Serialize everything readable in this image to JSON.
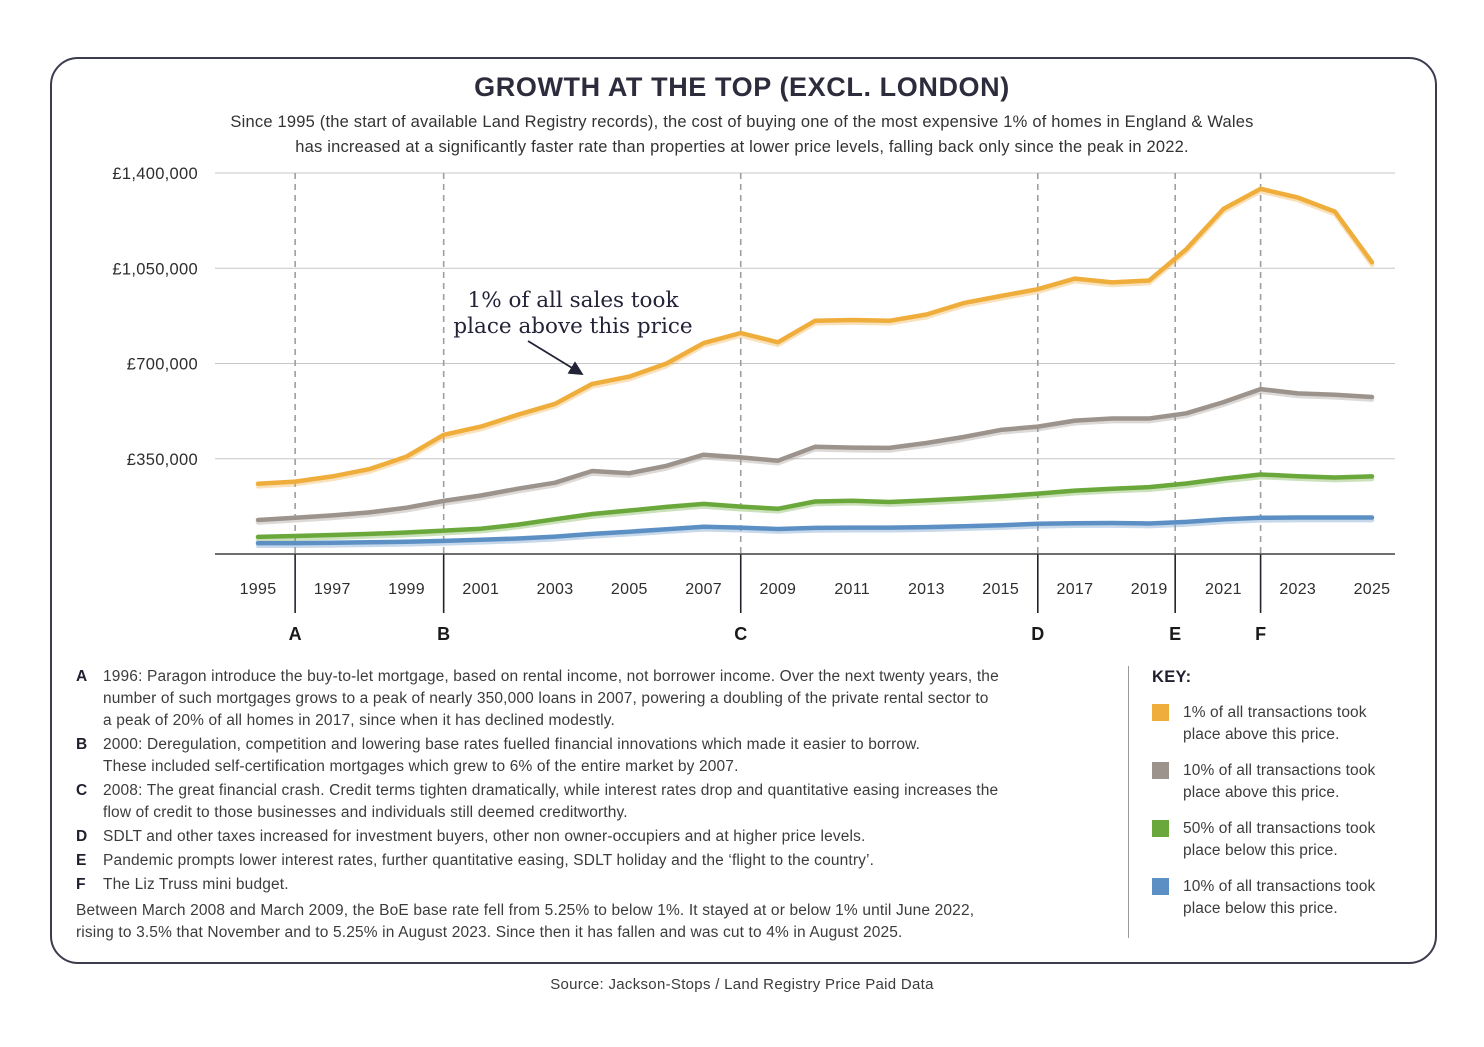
{
  "title": "GROWTH AT THE TOP (EXCL. LONDON)",
  "subtitle_line1": "Since 1995 (the start of available Land Registry records), the cost of buying one of the most expensive 1% of homes in England & Wales",
  "subtitle_line2": "has increased at a significantly faster rate than properties at lower price levels, falling back only since the peak in 2022.",
  "annotation": {
    "line1": "1% of all sales took",
    "line2": "place above this price"
  },
  "notes": [
    {
      "letter": "A",
      "lines": [
        "1996: Paragon introduce the buy-to-let mortgage, based on rental income, not borrower income. Over the next twenty years, the",
        "number of such mortgages grows to a peak of nearly 350,000 loans in 2007, powering a doubling of the private rental sector to",
        "a peak of 20% of all homes in 2017, since when it has declined modestly."
      ]
    },
    {
      "letter": "B",
      "lines": [
        "2000: Deregulation, competition and lowering base rates fuelled financial innovations which made it easier to borrow.",
        "These included self-certification mortgages which grew to 6% of the entire market by 2007."
      ]
    },
    {
      "letter": "C",
      "lines": [
        "2008: The great financial crash. Credit terms tighten dramatically, while interest rates drop and quantitative easing increases the",
        "flow of credit to those businesses and individuals still deemed creditworthy."
      ]
    },
    {
      "letter": "D",
      "lines": [
        "SDLT and other taxes increased for investment buyers, other non owner-occupiers and at higher price levels."
      ]
    },
    {
      "letter": "E",
      "lines": [
        "Pandemic prompts lower interest rates, further quantitative easing, SDLT holiday and the ‘flight to the country’."
      ]
    },
    {
      "letter": "F",
      "lines": [
        "The Liz Truss mini budget."
      ]
    }
  ],
  "closing_note": [
    "Between March 2008 and March 2009, the BoE base rate fell from 5.25% to below 1%. It stayed at or below 1% until June 2022,",
    "rising to 3.5% that November and to 5.25% in August 2023. Since then it has fallen and was cut to 4% in August 2025."
  ],
  "key": {
    "title": "KEY:",
    "items": [
      {
        "color": "#EFAD3C",
        "label": "1% of all transactions took place above this price."
      },
      {
        "color": "#9C938C",
        "label": "10% of all transactions took place above this price."
      },
      {
        "color": "#6BA83C",
        "label": "50% of all transactions took place below this price."
      },
      {
        "color": "#5C90C4",
        "label": "10% of all transactions took place below this price."
      }
    ]
  },
  "source": "Source: Jackson-Stops / Land Registry Price Paid Data",
  "chart_data": {
    "type": "line",
    "title": "GROWTH AT THE TOP (EXCL. LONDON)",
    "ylim": [
      0,
      1400000
    ],
    "grid": true,
    "legend_position": "right-panel",
    "y_ticks": [
      {
        "value": 350000,
        "label": "£350,000"
      },
      {
        "value": 700000,
        "label": "£700,000"
      },
      {
        "value": 1050000,
        "label": "£1,050,000"
      },
      {
        "value": 1400000,
        "label": "£1,400,000"
      }
    ],
    "x_tick_labels": [
      "1995",
      "1997",
      "1999",
      "2001",
      "2003",
      "2005",
      "2007",
      "2009",
      "2011",
      "2013",
      "2015",
      "2017",
      "2019",
      "2021",
      "2023",
      "2025"
    ],
    "years": [
      1995,
      1996,
      1997,
      1998,
      1999,
      2000,
      2001,
      2002,
      2003,
      2004,
      2005,
      2006,
      2007,
      2008,
      2009,
      2010,
      2011,
      2012,
      2013,
      2014,
      2015,
      2016,
      2017,
      2018,
      2019,
      2020,
      2021,
      2022,
      2023,
      2024,
      2025
    ],
    "series": [
      {
        "id": "1pc-above",
        "name": "1% of all transactions took place above this price",
        "color": "#EFAD3C",
        "values": [
          258000,
          266000,
          285000,
          312000,
          358000,
          438000,
          468000,
          512000,
          552000,
          625000,
          652000,
          700000,
          775000,
          812000,
          778000,
          857000,
          860000,
          857000,
          880000,
          922000,
          948000,
          973000,
          1012000,
          998000,
          1005000,
          1120000,
          1268000,
          1342000,
          1310000,
          1258000,
          1072000
        ]
      },
      {
        "id": "10pc-above",
        "name": "10% of all transactions took place above this price",
        "color": "#9C938C",
        "values": [
          125000,
          133000,
          142000,
          153000,
          170000,
          195000,
          215000,
          240000,
          262000,
          305000,
          297000,
          324000,
          365000,
          355000,
          343000,
          394000,
          391000,
          390000,
          408000,
          430000,
          456000,
          468000,
          490000,
          498000,
          498000,
          517000,
          558000,
          606000,
          590000,
          585000,
          577000
        ]
      },
      {
        "id": "50pc-below",
        "name": "50% of all transactions took place below this price",
        "color": "#6BA83C",
        "values": [
          63000,
          66000,
          70000,
          74000,
          79000,
          86000,
          93000,
          108000,
          128000,
          147000,
          160000,
          173000,
          184000,
          174000,
          166000,
          193000,
          196000,
          191000,
          197000,
          204000,
          212000,
          222000,
          233000,
          240000,
          246000,
          259000,
          277000,
          292000,
          286000,
          281000,
          285000
        ]
      },
      {
        "id": "10pc-below",
        "name": "10% of all transactions took place below this price",
        "color": "#5C90C4",
        "values": [
          40000,
          40000,
          41000,
          43000,
          45000,
          48000,
          52000,
          57000,
          64000,
          74000,
          82000,
          91000,
          100000,
          97000,
          92000,
          96000,
          97000,
          97000,
          99000,
          102000,
          106000,
          111000,
          113000,
          114000,
          112000,
          118000,
          127000,
          133000,
          134000,
          134000,
          134000
        ]
      }
    ],
    "markers": [
      {
        "label": "A",
        "year": 1996
      },
      {
        "label": "B",
        "year": 2000
      },
      {
        "label": "C",
        "year": 2008
      },
      {
        "label": "D",
        "year": 2016
      },
      {
        "label": "E",
        "year": 2019.7
      },
      {
        "label": "F",
        "year": 2022
      }
    ]
  }
}
